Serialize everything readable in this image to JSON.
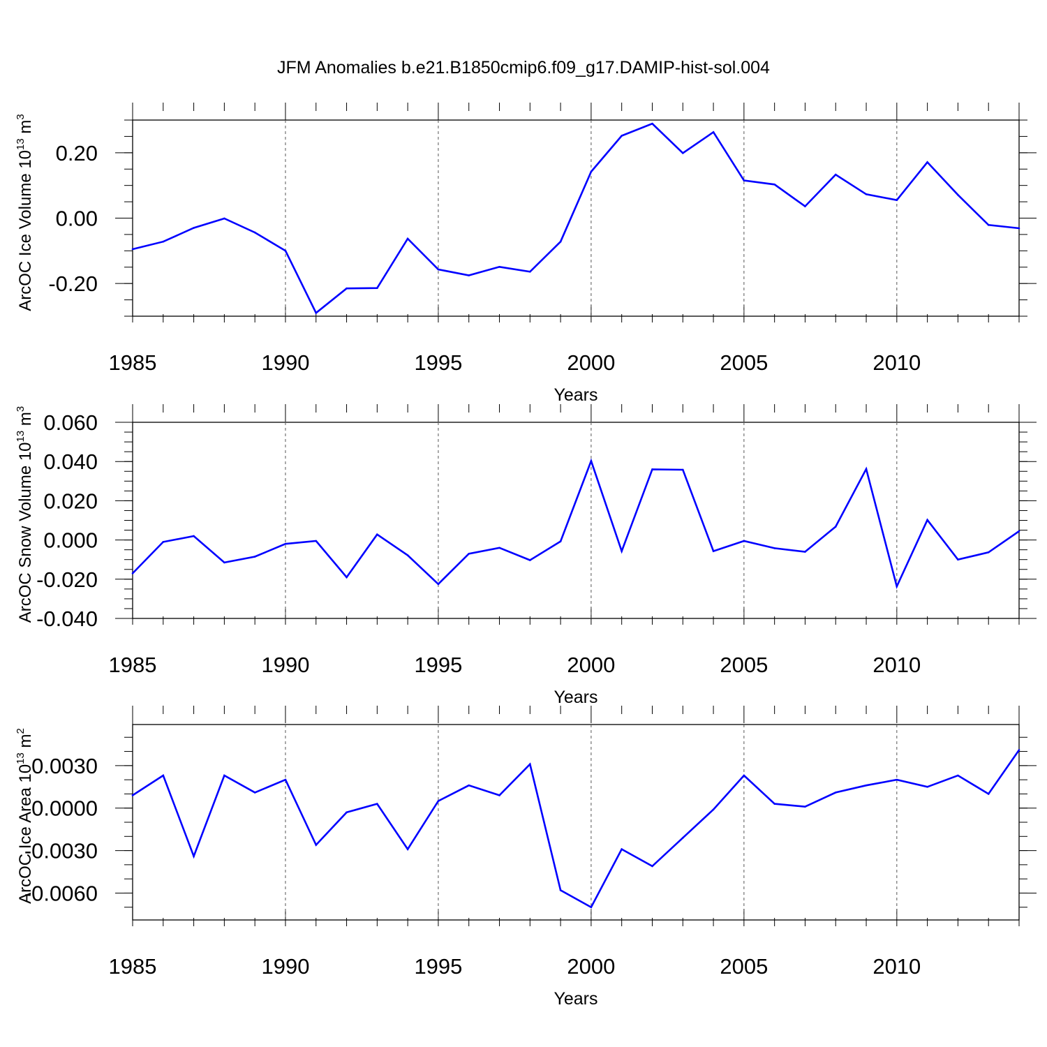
{
  "chart_title": "JFM Anomalies b.e21.B1850cmip6.f09_g17.DAMIP-hist-sol.004",
  "colors": {
    "series": "#0000ff",
    "axes": "#000000",
    "grid": "#555555"
  },
  "chart_data": [
    {
      "type": "line",
      "ylabel": "ArcOC Ice Volume 10",
      "ylabel_exp": "13",
      "ylabel_unit": " m",
      "ylabel_unit_exp": "3",
      "xlabel": "Years",
      "xlim": [
        1985,
        2014
      ],
      "ylim": [
        -0.3,
        0.3
      ],
      "x_ticks": [
        "1985",
        "1990",
        "1995",
        "2000",
        "2005",
        "2010"
      ],
      "y_ticks": [
        {
          "value": 0.2,
          "label": "0.20"
        },
        {
          "value": 0.0,
          "label": "0.00"
        },
        {
          "value": -0.2,
          "label": "-0.20"
        }
      ],
      "y_minor_step": 0.05,
      "x": [
        1985,
        1986,
        1987,
        1988,
        1989,
        1990,
        1991,
        1992,
        1993,
        1994,
        1995,
        1996,
        1997,
        1998,
        1999,
        2000,
        2001,
        2002,
        2003,
        2004,
        2005,
        2006,
        2007,
        2008,
        2009,
        2010,
        2011,
        2012,
        2013,
        2014
      ],
      "values": [
        -0.095,
        -0.072,
        -0.03,
        -0.001,
        -0.044,
        -0.1,
        -0.29,
        -0.215,
        -0.214,
        -0.063,
        -0.157,
        -0.175,
        -0.149,
        -0.164,
        -0.072,
        0.142,
        0.252,
        0.289,
        0.199,
        0.263,
        0.115,
        0.103,
        0.036,
        0.133,
        0.073,
        0.055,
        0.171,
        0.071,
        -0.021,
        -0.031
      ]
    },
    {
      "type": "line",
      "ylabel": "ArcOC Snow Volume 10",
      "ylabel_exp": "13",
      "ylabel_unit": " m",
      "ylabel_unit_exp": "3",
      "xlabel": "Years",
      "xlim": [
        1985,
        2014
      ],
      "ylim": [
        -0.04,
        0.06
      ],
      "x_ticks": [
        "1985",
        "1990",
        "1995",
        "2000",
        "2005",
        "2010"
      ],
      "y_ticks": [
        {
          "value": 0.06,
          "label": "0.060"
        },
        {
          "value": 0.04,
          "label": "0.040"
        },
        {
          "value": 0.02,
          "label": "0.020"
        },
        {
          "value": 0.0,
          "label": "0.000"
        },
        {
          "value": -0.02,
          "label": "-0.020"
        },
        {
          "value": -0.04,
          "label": "-0.040"
        }
      ],
      "y_minor_step": 0.005,
      "x": [
        1985,
        1986,
        1987,
        1988,
        1989,
        1990,
        1991,
        1992,
        1993,
        1994,
        1995,
        1996,
        1997,
        1998,
        1999,
        2000,
        2001,
        2002,
        2003,
        2004,
        2005,
        2006,
        2007,
        2008,
        2009,
        2010,
        2011,
        2012,
        2013,
        2014
      ],
      "values": [
        -0.017,
        -0.001,
        0.002,
        -0.0115,
        -0.0085,
        -0.002,
        -0.0005,
        -0.019,
        0.0028,
        -0.0078,
        -0.0225,
        -0.007,
        -0.004,
        -0.0103,
        -0.0007,
        0.0403,
        -0.0057,
        0.036,
        0.0358,
        -0.0057,
        -0.0005,
        -0.0042,
        -0.006,
        0.0068,
        0.0362,
        -0.0237,
        0.0102,
        -0.01,
        -0.0063,
        0.0045
      ]
    },
    {
      "type": "line",
      "ylabel": "ArcOC Ice Area 10",
      "ylabel_exp": "13",
      "ylabel_unit": " m",
      "ylabel_unit_exp": "2",
      "xlabel": "Years",
      "xlim": [
        1985,
        2014
      ],
      "ylim": [
        -0.0079,
        0.0059
      ],
      "x_ticks": [
        "1985",
        "1990",
        "1995",
        "2000",
        "2005",
        "2010"
      ],
      "y_ticks": [
        {
          "value": 0.003,
          "label": "0.0030"
        },
        {
          "value": 0.0,
          "label": "0.0000"
        },
        {
          "value": -0.003,
          "label": "-0.0030"
        },
        {
          "value": -0.006,
          "label": "-0.0060"
        }
      ],
      "y_minor_step": 0.001,
      "x": [
        1985,
        1986,
        1987,
        1988,
        1989,
        1990,
        1991,
        1992,
        1993,
        1994,
        1995,
        1996,
        1997,
        1998,
        1999,
        2000,
        2001,
        2002,
        2003,
        2004,
        2005,
        2006,
        2007,
        2008,
        2009,
        2010,
        2011,
        2012,
        2013,
        2014
      ],
      "values": [
        0.0009,
        0.0023,
        -0.0034,
        0.0023,
        0.0011,
        0.002,
        -0.0026,
        -0.0003,
        0.0003,
        -0.0029,
        0.0005,
        0.0016,
        0.0009,
        0.0031,
        -0.0058,
        -0.007,
        -0.0029,
        -0.0041,
        -0.0021,
        -0.0001,
        0.0023,
        0.0003,
        0.0001,
        0.0011,
        0.0016,
        0.002,
        0.0015,
        0.0023,
        0.001,
        0.0041
      ]
    }
  ]
}
